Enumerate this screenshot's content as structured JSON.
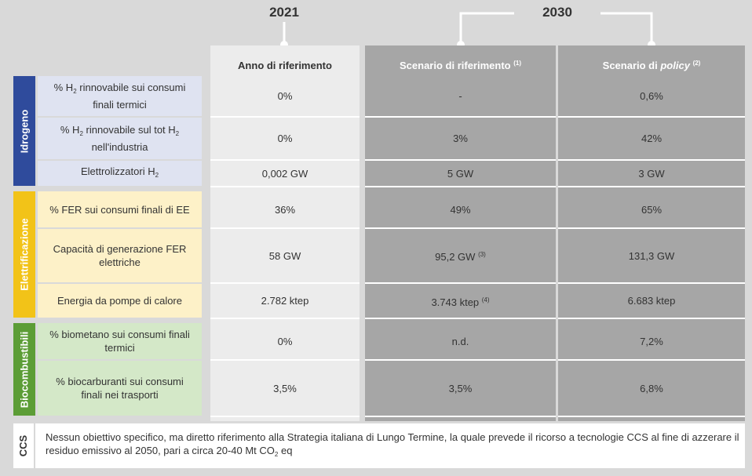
{
  "years": [
    [
      {
        "text": "2021"
      }
    ],
    [
      {
        "text": "2030"
      }
    ]
  ],
  "columns": [
    [
      {
        "text": "Anno di riferimento"
      }
    ],
    [
      {
        "text": "Scenario di riferimento "
      },
      {
        "text": "(1)",
        "sup": true
      }
    ],
    [
      {
        "text": "Scenario di "
      },
      {
        "text": "policy",
        "italic": true
      },
      {
        "text": " "
      },
      {
        "text": "(2)",
        "sup": true
      }
    ]
  ],
  "groups": [
    {
      "name": "Idrogeno",
      "rows": [
        {
          "label": [
            {
              "text": "% H"
            },
            {
              "text": "2",
              "sub": true
            },
            {
              "text": " rinnovabile sui consumi finali termici"
            }
          ],
          "values": [
            [
              {
                "text": "0%"
              }
            ],
            [
              {
                "text": "-"
              }
            ],
            [
              {
                "text": "0,6%"
              }
            ]
          ]
        },
        {
          "label": [
            {
              "text": "% H"
            },
            {
              "text": "2",
              "sub": true
            },
            {
              "text": " rinnovabile sul tot H"
            },
            {
              "text": "2",
              "sub": true
            },
            {
              "text": " nell'industria"
            }
          ],
          "values": [
            [
              {
                "text": "0%"
              }
            ],
            [
              {
                "text": "3%"
              }
            ],
            [
              {
                "text": "42%"
              }
            ]
          ]
        },
        {
          "label": [
            {
              "text": "Elettrolizzatori H"
            },
            {
              "text": "2",
              "sub": true
            }
          ],
          "values": [
            [
              {
                "text": "0,002 GW"
              }
            ],
            [
              {
                "text": "5 GW"
              }
            ],
            [
              {
                "text": "3 GW"
              }
            ]
          ]
        }
      ]
    },
    {
      "name": "Elettrificazione",
      "rows": [
        {
          "label": [
            {
              "text": "% FER sui consumi finali di EE"
            }
          ],
          "values": [
            [
              {
                "text": "36%"
              }
            ],
            [
              {
                "text": "49%"
              }
            ],
            [
              {
                "text": "65%"
              }
            ]
          ]
        },
        {
          "label": [
            {
              "text": "Capacità di generazione FER elettriche"
            }
          ],
          "values": [
            [
              {
                "text": "58 GW"
              }
            ],
            [
              {
                "text": "95,2 GW "
              },
              {
                "text": "(3)",
                "sup": true
              }
            ],
            [
              {
                "text": "131,3 GW"
              }
            ]
          ]
        },
        {
          "label": [
            {
              "text": "Energia da pompe di calore"
            }
          ],
          "values": [
            [
              {
                "text": "2.782 ktep"
              }
            ],
            [
              {
                "text": "3.743 ktep "
              },
              {
                "text": "(4)",
                "sup": true
              }
            ],
            [
              {
                "text": "6.683 ktep"
              }
            ]
          ]
        }
      ]
    },
    {
      "name": "Biocombustibili",
      "rows": [
        {
          "label": [
            {
              "text": "% biometano sui consumi finali termici"
            }
          ],
          "values": [
            [
              {
                "text": "0%"
              }
            ],
            [
              {
                "text": "n.d."
              }
            ],
            [
              {
                "text": "7,2%"
              }
            ]
          ]
        },
        {
          "label": [
            {
              "text": "% biocarburanti sui consumi finali nei trasporti"
            }
          ],
          "values": [
            [
              {
                "text": "3,5%"
              }
            ],
            [
              {
                "text": "3,5%"
              }
            ],
            [
              {
                "text": "6,8%"
              }
            ]
          ]
        }
      ]
    }
  ],
  "ccs": {
    "label": "CCS",
    "text": [
      {
        "text": "Nessun obiettivo specifico, ma diretto riferimento alla Strategia italiana di Lungo Termine, la quale prevede il ricorso a tecnologie CCS al fine di azzerare il residuo emissivo al 2050, pari a circa 20-40 Mt CO"
      },
      {
        "text": "2",
        "sub": true
      },
      {
        "text": " eq"
      }
    ]
  }
}
